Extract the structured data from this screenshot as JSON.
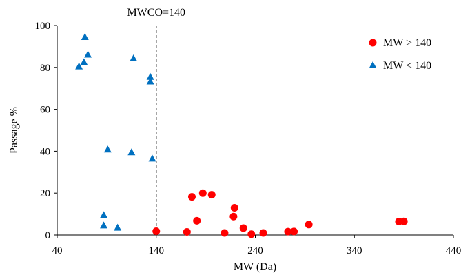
{
  "chart_data": {
    "type": "scatter",
    "title": "",
    "xlabel": "MW (Da)",
    "ylabel": "Passage %",
    "xlim": [
      40,
      440
    ],
    "ylim": [
      0,
      100
    ],
    "xticks": [
      40,
      140,
      240,
      340,
      440
    ],
    "yticks": [
      0,
      20,
      40,
      60,
      80,
      100
    ],
    "x_tick_labels": [
      "40",
      "140",
      "240",
      "340",
      "440"
    ],
    "y_tick_labels": [
      "0",
      "20",
      "40",
      "60",
      "80",
      "100"
    ],
    "grid": false,
    "legend_position": "top-right",
    "reference_line": {
      "x": 140,
      "style": "dashed",
      "label": "MWCO=140"
    },
    "series": [
      {
        "name": "MW > 140",
        "marker": "circle",
        "color": "#ff0000",
        "points": [
          [
            140,
            1.8
          ],
          [
            171,
            1.5
          ],
          [
            176,
            18.2
          ],
          [
            181,
            6.8
          ],
          [
            187,
            20.0
          ],
          [
            196,
            19.2
          ],
          [
            209,
            1.0
          ],
          [
            219,
            13.0
          ],
          [
            218,
            8.8
          ],
          [
            228,
            3.3
          ],
          [
            236,
            0.4
          ],
          [
            248,
            1.0
          ],
          [
            273,
            1.6
          ],
          [
            279,
            1.7
          ],
          [
            294,
            5.0
          ],
          [
            385,
            6.4
          ],
          [
            390,
            6.5
          ]
        ]
      },
      {
        "name": "MW < 140",
        "marker": "triangle",
        "color": "#0070c0",
        "points": [
          [
            62,
            80.4
          ],
          [
            67,
            82.4
          ],
          [
            68,
            94.4
          ],
          [
            71,
            86.0
          ],
          [
            87,
            9.4
          ],
          [
            87,
            4.5
          ],
          [
            91,
            40.7
          ],
          [
            101,
            3.4
          ],
          [
            115,
            39.4
          ],
          [
            117,
            84.2
          ],
          [
            134,
            75.4
          ],
          [
            134,
            73.2
          ],
          [
            136,
            36.4
          ]
        ]
      }
    ]
  }
}
